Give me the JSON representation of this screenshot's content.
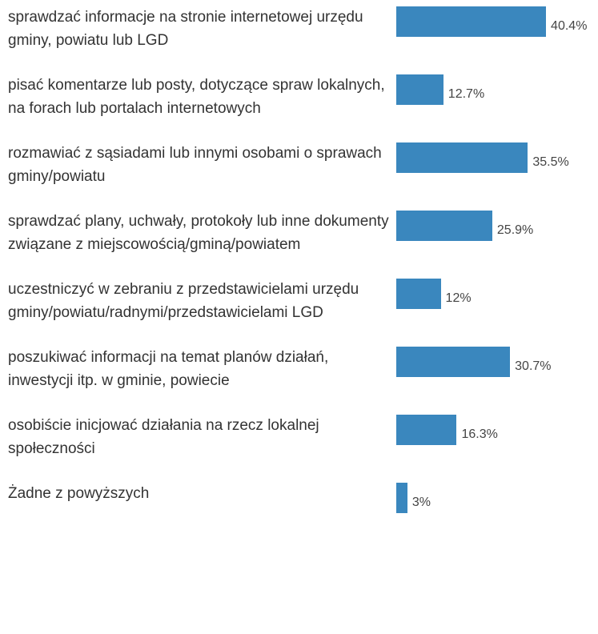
{
  "chart_data": {
    "type": "bar",
    "orientation": "horizontal",
    "categories": [
      "sprawdzać informacje na stronie internetowej urzędu gminy, powiatu lub LGD",
      "pisać komentarze lub posty, dotyczące spraw lokalnych, na forach lub portalach internetowych",
      "rozmawiać z sąsiadami lub innymi osobami o sprawach gminy/powiatu",
      "sprawdzać plany, uchwały, protokoły lub inne dokumenty związane z miejscowością/gminą/powiatem",
      "uczestniczyć w zebraniu z przedstawicielami urzędu gminy/powiatu/radnymi/przedstawicielami LGD",
      "poszukiwać informacji na temat planów działań, inwestycji itp. w gminie, powiecie",
      "osobiście inicjować działania na rzecz lokalnej społeczności",
      "Żadne z powyższych"
    ],
    "values": [
      40.4,
      12.7,
      35.5,
      25.9,
      12,
      30.7,
      16.3,
      3
    ],
    "value_labels": [
      "40.4%",
      "12.7%",
      "35.5%",
      "25.9%",
      "12%",
      "30.7%",
      "16.3%",
      "3%"
    ],
    "color": "#3a87be"
  }
}
